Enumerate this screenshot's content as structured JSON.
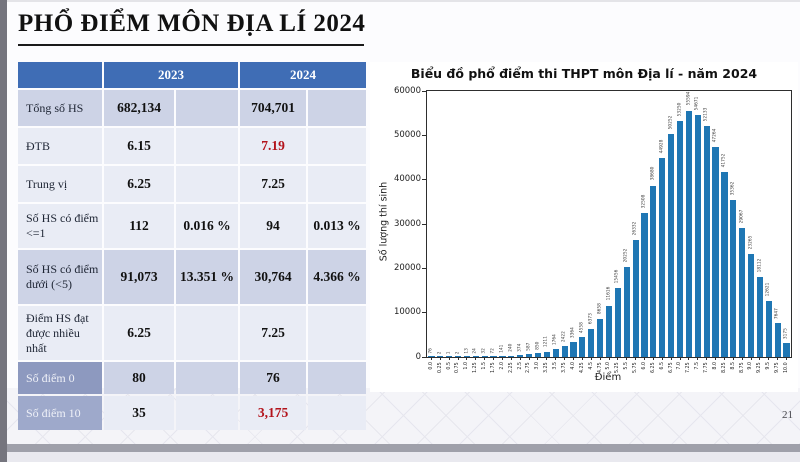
{
  "slide": {
    "title": "PHỔ ĐIỂM MÔN ĐỊA LÍ 2024",
    "page_number": "21"
  },
  "table": {
    "header": {
      "col_2023": "2023",
      "col_2024": "2024"
    },
    "rows": [
      {
        "label": "Tổng số HS",
        "v2023": "682,134",
        "p2023": "",
        "v2024": "704,701",
        "p2024": "",
        "shade": "dark",
        "inverse": false,
        "red2024": false
      },
      {
        "label": "ĐTB",
        "v2023": "6.15",
        "p2023": "",
        "v2024": "7.19",
        "p2024": "",
        "shade": "light",
        "inverse": false,
        "red2024": true
      },
      {
        "label": "Trung vị",
        "v2023": "6.25",
        "p2023": "",
        "v2024": "7.25",
        "p2024": "",
        "shade": "light",
        "inverse": false,
        "red2024": false
      },
      {
        "label": "Số HS có điểm <=1",
        "v2023": "112",
        "p2023": "0.016 %",
        "v2024": "94",
        "p2024": "0.013 %",
        "shade": "light",
        "inverse": false,
        "red2024": false
      },
      {
        "label": "Số HS có điểm dưới (<5)",
        "v2023": "91,073",
        "p2023": "13.351 %",
        "v2024": "30,764",
        "p2024": "4.366 %",
        "shade": "dark",
        "inverse": false,
        "red2024": false
      },
      {
        "label": "Điểm HS đạt được nhiều nhất",
        "v2023": "6.25",
        "p2023": "",
        "v2024": "7.25",
        "p2024": "",
        "shade": "light",
        "inverse": false,
        "red2024": false
      },
      {
        "label": "Số điểm 0",
        "v2023": "80",
        "p2023": "",
        "v2024": "76",
        "p2024": "",
        "shade": "dark",
        "inverse": true,
        "red2024": false
      },
      {
        "label": "Số điểm 10",
        "v2023": "35",
        "p2023": "",
        "v2024": "3,175",
        "p2024": "",
        "shade": "light",
        "inverse": true,
        "red2024": true
      }
    ]
  },
  "chart_data": {
    "type": "bar",
    "title": "Biểu đồ phổ điểm thi THPT môn Địa lí - năm 2024",
    "xlabel": "Điểm",
    "ylabel": "Số lượng thí sinh",
    "x": [
      "0.0",
      "0.25",
      "0.5",
      "0.75",
      "1.0",
      "1.25",
      "1.5",
      "1.75",
      "2.0",
      "2.25",
      "2.5",
      "2.75",
      "3.0",
      "3.25",
      "3.5",
      "3.75",
      "4.0",
      "4.25",
      "4.5",
      "4.75",
      "5.0",
      "5.25",
      "5.5",
      "5.75",
      "6.0",
      "6.25",
      "6.5",
      "6.75",
      "7.0",
      "7.25",
      "7.5",
      "7.75",
      "8.0",
      "8.25",
      "8.5",
      "8.75",
      "9.0",
      "9.25",
      "9.5",
      "9.75",
      "10.0"
    ],
    "values": [
      76,
      2,
      1,
      2,
      13,
      24,
      32,
      72,
      141,
      240,
      374,
      587,
      850,
      1211,
      1764,
      2422,
      3364,
      4558,
      6373,
      8658,
      11616,
      15456,
      20252,
      26332,
      32508,
      38680,
      44928,
      50252,
      53250,
      55594,
      54671,
      52133,
      47264,
      41752,
      35362,
      29067,
      23265,
      18112,
      12621,
      7647,
      3175
    ],
    "ylim": [
      0,
      60000
    ],
    "yticks": [
      "0",
      "10000",
      "20000",
      "30000",
      "40000",
      "50000",
      "60000"
    ],
    "bar_color": "#1f77b4",
    "grid": false,
    "bar_value_labels": true
  }
}
